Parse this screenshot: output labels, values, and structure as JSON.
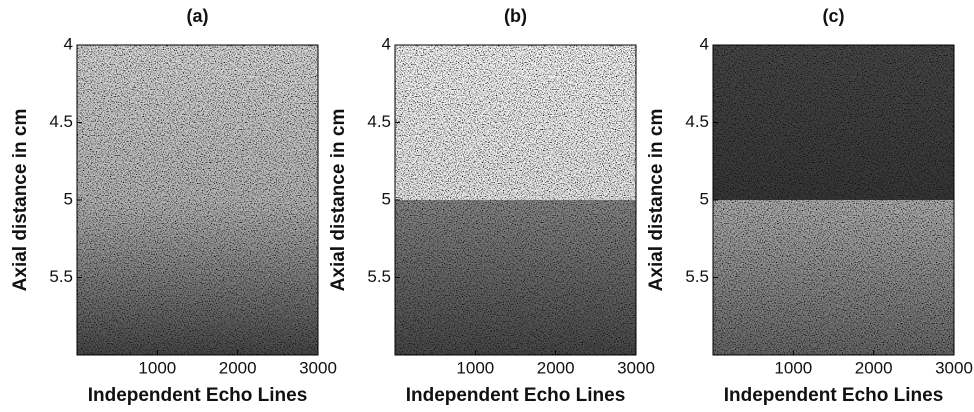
{
  "chart_data": [
    {
      "type": "image",
      "title": "(a)",
      "xlabel": "Independent Echo Lines",
      "ylabel": "Axial distance in cm",
      "xlim": [
        0,
        3000
      ],
      "xticks": [
        1000,
        2000,
        3000
      ],
      "ylim": [
        4,
        6
      ],
      "yticks": [
        4,
        4.5,
        5,
        5.5
      ],
      "yreversed": true
    },
    {
      "type": "image",
      "title": "(b)",
      "xlabel": "Independent Echo Lines",
      "ylabel": "Axial distance in cm",
      "xlim": [
        0,
        3000
      ],
      "xticks": [
        1000,
        2000,
        3000
      ],
      "ylim": [
        4,
        6
      ],
      "yticks": [
        4,
        4.5,
        5,
        5.5
      ],
      "yreversed": true
    },
    {
      "type": "image",
      "title": "(c)",
      "xlabel": "Independent Echo Lines",
      "ylabel": "Axial distance in cm",
      "xlim": [
        0,
        3000
      ],
      "xticks": [
        1000,
        2000,
        3000
      ],
      "ylim": [
        4,
        6
      ],
      "yticks": [
        4,
        4.5,
        5,
        5.5
      ],
      "yreversed": true
    }
  ]
}
